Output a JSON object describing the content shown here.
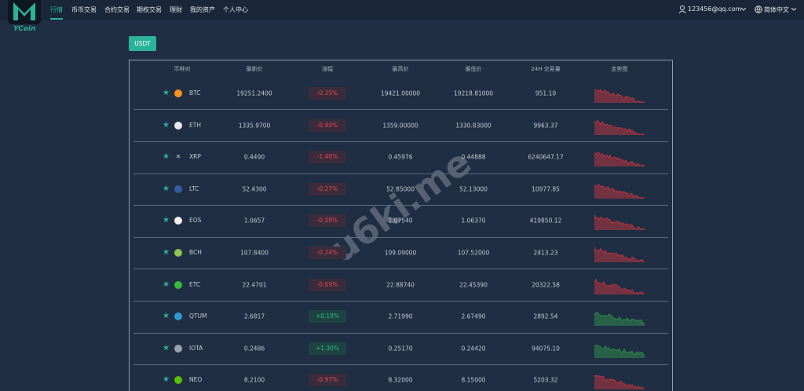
{
  "header": {
    "brand": "YCoin",
    "nav": [
      "行情",
      "币币交易",
      "合约交易",
      "期权交易",
      "理财",
      "我的资产",
      "个人中心"
    ],
    "user": "123456@qq.com",
    "language": "简体中文"
  },
  "tab": "USDT",
  "table": {
    "columns": [
      "币种对",
      "最新价",
      "涨幅",
      "最高价",
      "最低价",
      "24H 交易量",
      "走势图"
    ],
    "rows": [
      {
        "symbol": "BTC",
        "price": "19251.2400",
        "change": "-0.25%",
        "high": "19421.00000",
        "low": "19218.81000",
        "volume": "951.10"
      },
      {
        "symbol": "ETH",
        "price": "1335.9700",
        "change": "-0.40%",
        "high": "1359.00000",
        "low": "1330.83000",
        "volume": "9963.37"
      },
      {
        "symbol": "XRP",
        "price": "0.4490",
        "change": "-1.46%",
        "high": "0.45976",
        "low": "0.44888",
        "volume": "6240647.17"
      },
      {
        "symbol": "LTC",
        "price": "52.4300",
        "change": "-0.27%",
        "high": "52.85000",
        "low": "52.13000",
        "volume": "10977.85"
      },
      {
        "symbol": "EOS",
        "price": "1.0657",
        "change": "-0.58%",
        "high": "1.07540",
        "low": "1.06370",
        "volume": "419850.12"
      },
      {
        "symbol": "BCH",
        "price": "107.8400",
        "change": "-0.24%",
        "high": "109.09000",
        "low": "107.52000",
        "volume": "2413.23"
      },
      {
        "symbol": "ETC",
        "price": "22.4701",
        "change": "-0.69%",
        "high": "22.88740",
        "low": "22.45390",
        "volume": "20322.58"
      },
      {
        "symbol": "QTUM",
        "price": "2.6817",
        "change": "+0.19%",
        "high": "2.71990",
        "low": "2.67490",
        "volume": "2892.54"
      },
      {
        "symbol": "IOTA",
        "price": "0.2486",
        "change": "+1.30%",
        "high": "0.25170",
        "low": "0.24420",
        "volume": "94075.10"
      },
      {
        "symbol": "NEO",
        "price": "8.2100",
        "change": "-0.97%",
        "high": "8.32000",
        "low": "8.15000",
        "volume": "5203.32"
      }
    ]
  },
  "watermark": "u6ki.me"
}
